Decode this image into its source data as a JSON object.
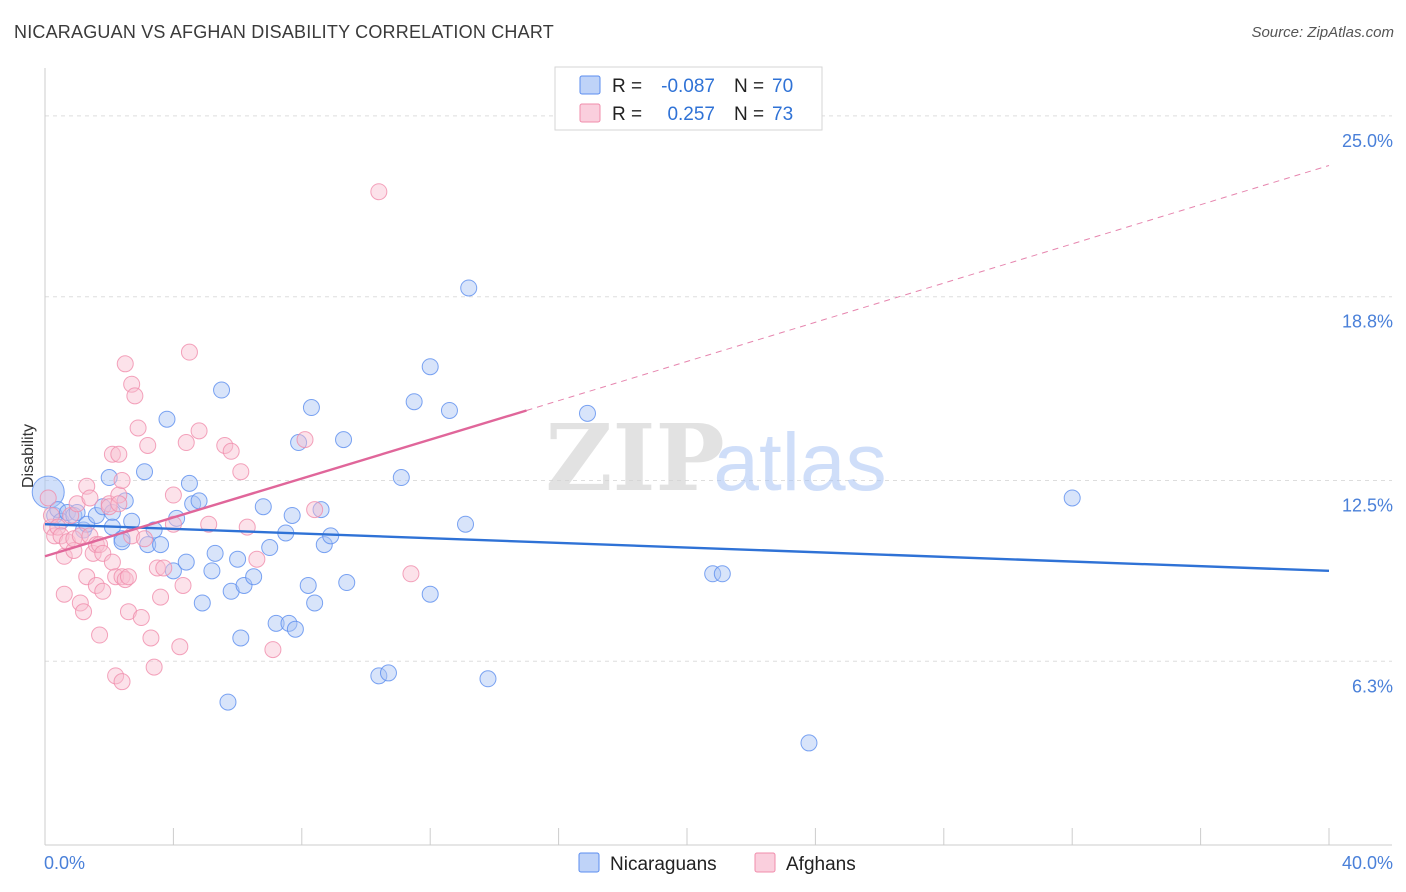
{
  "chart_data": {
    "type": "scatter",
    "title": "NICARAGUAN VS AFGHAN DISABILITY CORRELATION CHART",
    "source": "Source: ZipAtlas.com",
    "ylabel": "Disability",
    "xlabel": "",
    "xlim": [
      0,
      40
    ],
    "ylim": [
      0,
      26.3
    ],
    "x_tick_labels": [
      "0.0%",
      "40.0%"
    ],
    "y_ticks": [
      6.3,
      12.5,
      18.8,
      25.0
    ],
    "y_tick_labels": [
      "6.3%",
      "12.5%",
      "18.8%",
      "25.0%"
    ],
    "watermark": {
      "zip": "ZIP",
      "atlas": "atlas"
    },
    "legend_stats": [
      {
        "r_label": "R =",
        "r_value": "-0.087",
        "n_label": "N =",
        "n_value": "70",
        "color": "#5b8def"
      },
      {
        "r_label": "R =",
        "r_value": "0.257",
        "n_label": "N =",
        "n_value": "73",
        "color": "#f08cab"
      }
    ],
    "series": [
      {
        "name": "Nicaraguans",
        "color": "#5b8def",
        "fill": "#a9c4f5",
        "trend_color": "#2f72d6",
        "trend": {
          "x": [
            0,
            40
          ],
          "y": [
            11.0,
            9.4
          ]
        },
        "points": [
          [
            0.1,
            12.1
          ],
          [
            0.3,
            11.3
          ],
          [
            0.4,
            11.5
          ],
          [
            0.5,
            11.1
          ],
          [
            0.7,
            11.4
          ],
          [
            0.9,
            11.3
          ],
          [
            1.0,
            11.4
          ],
          [
            1.2,
            10.8
          ],
          [
            1.3,
            11.0
          ],
          [
            1.6,
            11.3
          ],
          [
            1.8,
            11.6
          ],
          [
            2.0,
            12.6
          ],
          [
            2.1,
            11.4
          ],
          [
            2.1,
            10.9
          ],
          [
            2.4,
            10.5
          ],
          [
            2.4,
            10.4
          ],
          [
            2.5,
            11.8
          ],
          [
            2.7,
            11.1
          ],
          [
            3.1,
            12.8
          ],
          [
            3.2,
            10.3
          ],
          [
            3.4,
            10.8
          ],
          [
            3.6,
            10.3
          ],
          [
            3.8,
            14.6
          ],
          [
            4.0,
            9.4
          ],
          [
            4.1,
            11.2
          ],
          [
            4.4,
            9.7
          ],
          [
            4.5,
            12.4
          ],
          [
            4.6,
            11.7
          ],
          [
            4.8,
            11.8
          ],
          [
            4.9,
            8.3
          ],
          [
            5.2,
            9.4
          ],
          [
            5.3,
            10.0
          ],
          [
            5.5,
            15.6
          ],
          [
            5.7,
            4.9
          ],
          [
            5.8,
            8.7
          ],
          [
            6.0,
            9.8
          ],
          [
            6.1,
            7.1
          ],
          [
            6.2,
            8.9
          ],
          [
            6.5,
            9.2
          ],
          [
            6.8,
            11.6
          ],
          [
            7.0,
            10.2
          ],
          [
            7.2,
            7.6
          ],
          [
            7.5,
            10.7
          ],
          [
            7.6,
            7.6
          ],
          [
            7.7,
            11.3
          ],
          [
            7.8,
            7.4
          ],
          [
            7.9,
            13.8
          ],
          [
            8.2,
            8.9
          ],
          [
            8.3,
            15.0
          ],
          [
            8.4,
            8.3
          ],
          [
            8.6,
            11.5
          ],
          [
            8.7,
            10.3
          ],
          [
            8.9,
            10.6
          ],
          [
            9.3,
            13.9
          ],
          [
            9.4,
            9.0
          ],
          [
            10.4,
            5.8
          ],
          [
            10.7,
            5.9
          ],
          [
            11.1,
            12.6
          ],
          [
            11.5,
            15.2
          ],
          [
            12.0,
            16.4
          ],
          [
            12.0,
            8.6
          ],
          [
            12.6,
            14.9
          ],
          [
            13.1,
            11.0
          ],
          [
            13.2,
            19.1
          ],
          [
            13.8,
            5.7
          ],
          [
            16.9,
            14.8
          ],
          [
            20.8,
            9.3
          ],
          [
            21.1,
            9.3
          ],
          [
            23.8,
            3.5
          ],
          [
            32.0,
            11.9
          ]
        ]
      },
      {
        "name": "Afghans",
        "color": "#f08cab",
        "fill": "#f8bfd1",
        "trend_color": "#e0669a",
        "trend": {
          "x": [
            0,
            15.0
          ],
          "y": [
            9.9,
            14.9
          ]
        },
        "trend_ext": {
          "x": [
            15.0,
            40
          ],
          "y": [
            14.9,
            23.3
          ]
        },
        "points": [
          [
            0.1,
            11.9
          ],
          [
            0.2,
            10.9
          ],
          [
            0.2,
            11.3
          ],
          [
            0.3,
            10.6
          ],
          [
            0.4,
            10.9
          ],
          [
            0.5,
            10.6
          ],
          [
            0.6,
            9.9
          ],
          [
            0.6,
            8.6
          ],
          [
            0.7,
            10.4
          ],
          [
            0.8,
            11.3
          ],
          [
            0.9,
            10.1
          ],
          [
            0.9,
            10.5
          ],
          [
            1.0,
            11.7
          ],
          [
            1.1,
            10.6
          ],
          [
            1.1,
            8.3
          ],
          [
            1.2,
            8.0
          ],
          [
            1.3,
            9.2
          ],
          [
            1.3,
            12.3
          ],
          [
            1.4,
            10.6
          ],
          [
            1.4,
            11.9
          ],
          [
            1.5,
            10.0
          ],
          [
            1.6,
            10.3
          ],
          [
            1.6,
            8.9
          ],
          [
            1.7,
            10.3
          ],
          [
            1.7,
            7.2
          ],
          [
            1.8,
            10.0
          ],
          [
            1.8,
            8.7
          ],
          [
            2.0,
            11.7
          ],
          [
            2.0,
            11.6
          ],
          [
            2.1,
            9.7
          ],
          [
            2.1,
            13.4
          ],
          [
            2.2,
            5.8
          ],
          [
            2.2,
            9.2
          ],
          [
            2.3,
            13.4
          ],
          [
            2.3,
            12.0
          ],
          [
            2.3,
            11.7
          ],
          [
            2.4,
            5.6
          ],
          [
            2.4,
            9.2
          ],
          [
            2.4,
            12.5
          ],
          [
            2.5,
            9.1
          ],
          [
            2.5,
            16.5
          ],
          [
            2.6,
            8.0
          ],
          [
            2.6,
            9.2
          ],
          [
            2.7,
            15.8
          ],
          [
            2.7,
            10.6
          ],
          [
            2.8,
            15.4
          ],
          [
            2.9,
            14.3
          ],
          [
            3.0,
            7.8
          ],
          [
            3.1,
            10.5
          ],
          [
            3.2,
            13.7
          ],
          [
            3.3,
            7.1
          ],
          [
            3.4,
            6.1
          ],
          [
            3.5,
            9.5
          ],
          [
            3.6,
            8.5
          ],
          [
            3.7,
            9.5
          ],
          [
            4.0,
            12.0
          ],
          [
            4.0,
            11.0
          ],
          [
            4.2,
            6.8
          ],
          [
            4.3,
            8.9
          ],
          [
            4.4,
            13.8
          ],
          [
            4.5,
            16.9
          ],
          [
            4.8,
            14.2
          ],
          [
            5.1,
            11.0
          ],
          [
            5.6,
            13.7
          ],
          [
            5.8,
            13.5
          ],
          [
            6.1,
            12.8
          ],
          [
            6.3,
            10.9
          ],
          [
            6.6,
            9.8
          ],
          [
            7.1,
            6.7
          ],
          [
            8.1,
            13.9
          ],
          [
            8.4,
            11.5
          ],
          [
            10.4,
            22.4
          ],
          [
            11.4,
            9.3
          ]
        ]
      }
    ]
  }
}
